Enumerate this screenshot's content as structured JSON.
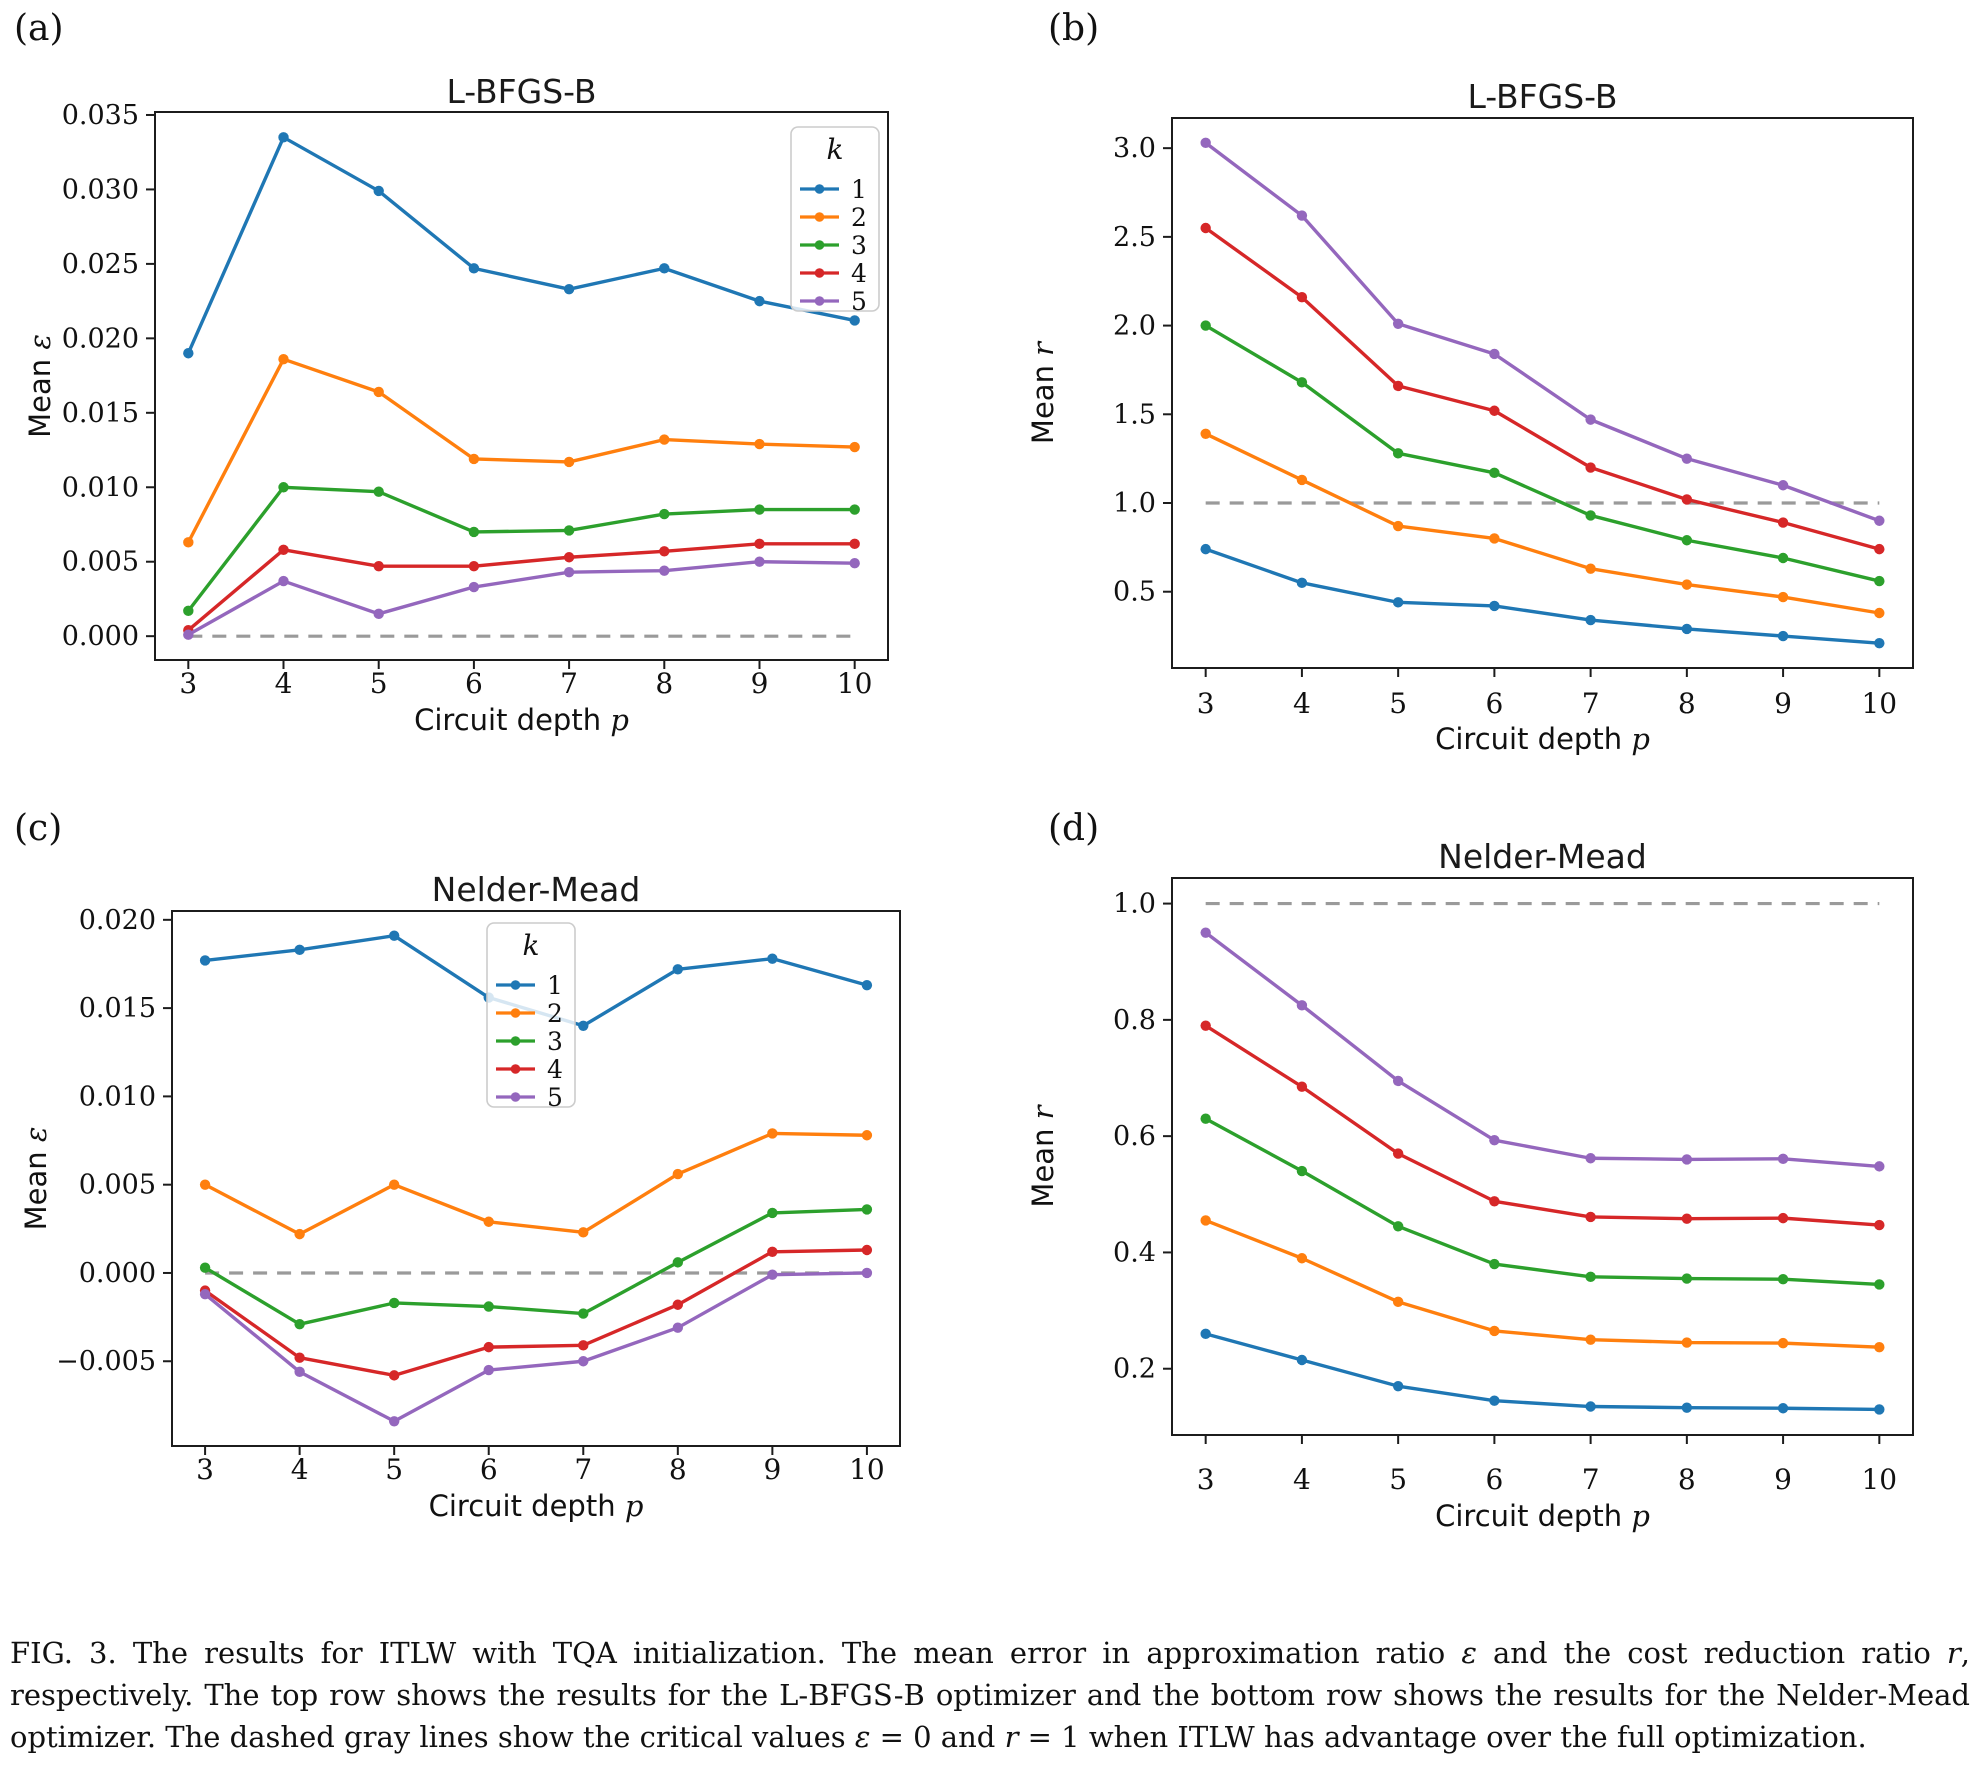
{
  "figure": {
    "caption_parts": [
      {
        "text": "FIG. 3. The results for ITLW with TQA initialization. The mean error in approximation ratio ",
        "italic": false
      },
      {
        "text": "ε",
        "italic": true
      },
      {
        "text": " and the cost reduction ratio ",
        "italic": false
      },
      {
        "text": "r",
        "italic": true
      },
      {
        "text": ", respectively. The top row shows the results for the L-BFGS-B optimizer and the bottom row shows the results for the Nelder-Mead optimizer. The dashed gray lines show the critical values ",
        "italic": false
      },
      {
        "text": "ε",
        "italic": true
      },
      {
        "text": " = 0 and ",
        "italic": false
      },
      {
        "text": "r",
        "italic": true
      },
      {
        "text": " = 1 when ITLW has advantage over the full optimization.",
        "italic": false
      }
    ]
  },
  "colors": {
    "k1": "#1f77b4",
    "k2": "#ff7f0e",
    "k3": "#2ca02c",
    "k4": "#d62728",
    "k5": "#9467bd",
    "reference_dash": "#9a9a9a",
    "spine": "#1c1c1c",
    "text": "#111111"
  },
  "chart_data": [
    {
      "id": "a",
      "panel_label": "(a)",
      "type": "line",
      "title": "L-BFGS-B",
      "xlabel": "Circuit depth",
      "xlabel_symbol": "p",
      "ylabel": "Mean",
      "ylabel_symbol": "ε",
      "x": [
        3,
        4,
        5,
        6,
        7,
        8,
        9,
        10
      ],
      "xlim": [
        2.65,
        10.35
      ],
      "ylim": [
        -0.0016,
        0.0352
      ],
      "grid": false,
      "xticks": [
        {
          "v": 3,
          "label": "3"
        },
        {
          "v": 4,
          "label": "4"
        },
        {
          "v": 5,
          "label": "5"
        },
        {
          "v": 6,
          "label": "6"
        },
        {
          "v": 7,
          "label": "7"
        },
        {
          "v": 8,
          "label": "8"
        },
        {
          "v": 9,
          "label": "9"
        },
        {
          "v": 10,
          "label": "10"
        }
      ],
      "yticks": [
        {
          "v": 0.0,
          "label": "0.000"
        },
        {
          "v": 0.005,
          "label": "0.005"
        },
        {
          "v": 0.01,
          "label": "0.010"
        },
        {
          "v": 0.015,
          "label": "0.015"
        },
        {
          "v": 0.02,
          "label": "0.020"
        },
        {
          "v": 0.025,
          "label": "0.025"
        },
        {
          "v": 0.03,
          "label": "0.030"
        },
        {
          "v": 0.035,
          "label": "0.035"
        }
      ],
      "ref_line": 0.0,
      "legend": {
        "show": true,
        "title": "k",
        "position": "top-right"
      },
      "series": [
        {
          "name": "1",
          "color": "#1f77b4",
          "values": [
            0.019,
            0.0335,
            0.0299,
            0.0247,
            0.0233,
            0.0247,
            0.0225,
            0.0212
          ]
        },
        {
          "name": "2",
          "color": "#ff7f0e",
          "values": [
            0.0063,
            0.0186,
            0.0164,
            0.0119,
            0.0117,
            0.0132,
            0.0129,
            0.0127
          ]
        },
        {
          "name": "3",
          "color": "#2ca02c",
          "values": [
            0.0017,
            0.01,
            0.0097,
            0.007,
            0.0071,
            0.0082,
            0.0085,
            0.0085
          ]
        },
        {
          "name": "4",
          "color": "#d62728",
          "values": [
            0.0004,
            0.0058,
            0.0047,
            0.0047,
            0.0053,
            0.0057,
            0.0062,
            0.0062
          ]
        },
        {
          "name": "5",
          "color": "#9467bd",
          "values": [
            0.0001,
            0.0037,
            0.0015,
            0.0033,
            0.0043,
            0.0044,
            0.005,
            0.0049
          ]
        }
      ]
    },
    {
      "id": "b",
      "panel_label": "(b)",
      "type": "line",
      "title": "L-BFGS-B",
      "xlabel": "Circuit depth",
      "xlabel_symbol": "p",
      "ylabel": "Mean",
      "ylabel_symbol": "r",
      "x": [
        3,
        4,
        5,
        6,
        7,
        8,
        9,
        10
      ],
      "xlim": [
        2.65,
        10.35
      ],
      "ylim": [
        0.07,
        3.17
      ],
      "grid": false,
      "xticks": [
        {
          "v": 3,
          "label": "3"
        },
        {
          "v": 4,
          "label": "4"
        },
        {
          "v": 5,
          "label": "5"
        },
        {
          "v": 6,
          "label": "6"
        },
        {
          "v": 7,
          "label": "7"
        },
        {
          "v": 8,
          "label": "8"
        },
        {
          "v": 9,
          "label": "9"
        },
        {
          "v": 10,
          "label": "10"
        }
      ],
      "yticks": [
        {
          "v": 0.5,
          "label": "0.5"
        },
        {
          "v": 1.0,
          "label": "1.0"
        },
        {
          "v": 1.5,
          "label": "1.5"
        },
        {
          "v": 2.0,
          "label": "2.0"
        },
        {
          "v": 2.5,
          "label": "2.5"
        },
        {
          "v": 3.0,
          "label": "3.0"
        }
      ],
      "ref_line": 1.0,
      "legend": {
        "show": false
      },
      "series": [
        {
          "name": "1",
          "color": "#1f77b4",
          "values": [
            0.74,
            0.55,
            0.44,
            0.42,
            0.34,
            0.29,
            0.25,
            0.21
          ]
        },
        {
          "name": "2",
          "color": "#ff7f0e",
          "values": [
            1.39,
            1.13,
            0.87,
            0.8,
            0.63,
            0.54,
            0.47,
            0.38
          ]
        },
        {
          "name": "3",
          "color": "#2ca02c",
          "values": [
            2.0,
            1.68,
            1.28,
            1.17,
            0.93,
            0.79,
            0.69,
            0.56
          ]
        },
        {
          "name": "4",
          "color": "#d62728",
          "values": [
            2.55,
            2.16,
            1.66,
            1.52,
            1.2,
            1.02,
            0.89,
            0.74
          ]
        },
        {
          "name": "5",
          "color": "#9467bd",
          "values": [
            3.03,
            2.62,
            2.01,
            1.84,
            1.47,
            1.25,
            1.1,
            0.9
          ]
        }
      ]
    },
    {
      "id": "c",
      "panel_label": "(c)",
      "type": "line",
      "title": "Nelder-Mead",
      "xlabel": "Circuit depth",
      "xlabel_symbol": "p",
      "ylabel": "Mean",
      "ylabel_symbol": "ε",
      "x": [
        3,
        4,
        5,
        6,
        7,
        8,
        9,
        10
      ],
      "xlim": [
        2.65,
        10.35
      ],
      "ylim": [
        -0.0098,
        0.0205
      ],
      "grid": false,
      "xticks": [
        {
          "v": 3,
          "label": "3"
        },
        {
          "v": 4,
          "label": "4"
        },
        {
          "v": 5,
          "label": "5"
        },
        {
          "v": 6,
          "label": "6"
        },
        {
          "v": 7,
          "label": "7"
        },
        {
          "v": 8,
          "label": "8"
        },
        {
          "v": 9,
          "label": "9"
        },
        {
          "v": 10,
          "label": "10"
        }
      ],
      "yticks": [
        {
          "v": -0.005,
          "label": "−0.005"
        },
        {
          "v": 0.0,
          "label": "0.000"
        },
        {
          "v": 0.005,
          "label": "0.005"
        },
        {
          "v": 0.01,
          "label": "0.010"
        },
        {
          "v": 0.015,
          "label": "0.015"
        },
        {
          "v": 0.02,
          "label": "0.020"
        }
      ],
      "ref_line": 0.0,
      "legend": {
        "show": true,
        "title": "k",
        "position": "top-center"
      },
      "series": [
        {
          "name": "1",
          "color": "#1f77b4",
          "values": [
            0.0177,
            0.0183,
            0.0191,
            0.0156,
            0.014,
            0.0172,
            0.0178,
            0.0163
          ]
        },
        {
          "name": "2",
          "color": "#ff7f0e",
          "values": [
            0.005,
            0.0022,
            0.005,
            0.0029,
            0.0023,
            0.0056,
            0.0079,
            0.0078
          ]
        },
        {
          "name": "3",
          "color": "#2ca02c",
          "values": [
            0.0003,
            -0.0029,
            -0.0017,
            -0.0019,
            -0.0023,
            0.0006,
            0.0034,
            0.0036
          ]
        },
        {
          "name": "4",
          "color": "#d62728",
          "values": [
            -0.001,
            -0.0048,
            -0.0058,
            -0.0042,
            -0.0041,
            -0.0018,
            0.0012,
            0.0013
          ]
        },
        {
          "name": "5",
          "color": "#9467bd",
          "values": [
            -0.0012,
            -0.0056,
            -0.0084,
            -0.0055,
            -0.005,
            -0.0031,
            -0.0001,
            0.0
          ]
        }
      ]
    },
    {
      "id": "d",
      "panel_label": "(d)",
      "type": "line",
      "title": "Nelder-Mead",
      "xlabel": "Circuit depth",
      "xlabel_symbol": "p",
      "ylabel": "Mean",
      "ylabel_symbol": "r",
      "x": [
        3,
        4,
        5,
        6,
        7,
        8,
        9,
        10
      ],
      "xlim": [
        2.65,
        10.35
      ],
      "ylim": [
        0.086,
        1.044
      ],
      "grid": false,
      "xticks": [
        {
          "v": 3,
          "label": "3"
        },
        {
          "v": 4,
          "label": "4"
        },
        {
          "v": 5,
          "label": "5"
        },
        {
          "v": 6,
          "label": "6"
        },
        {
          "v": 7,
          "label": "7"
        },
        {
          "v": 8,
          "label": "8"
        },
        {
          "v": 9,
          "label": "9"
        },
        {
          "v": 10,
          "label": "10"
        }
      ],
      "yticks": [
        {
          "v": 0.2,
          "label": "0.2"
        },
        {
          "v": 0.4,
          "label": "0.4"
        },
        {
          "v": 0.6,
          "label": "0.6"
        },
        {
          "v": 0.8,
          "label": "0.8"
        },
        {
          "v": 1.0,
          "label": "1.0"
        }
      ],
      "ref_line": 1.0,
      "legend": {
        "show": false
      },
      "series": [
        {
          "name": "1",
          "color": "#1f77b4",
          "values": [
            0.26,
            0.215,
            0.17,
            0.145,
            0.135,
            0.133,
            0.132,
            0.13
          ]
        },
        {
          "name": "2",
          "color": "#ff7f0e",
          "values": [
            0.455,
            0.39,
            0.315,
            0.265,
            0.25,
            0.245,
            0.244,
            0.237
          ]
        },
        {
          "name": "3",
          "color": "#2ca02c",
          "values": [
            0.63,
            0.54,
            0.445,
            0.38,
            0.358,
            0.355,
            0.354,
            0.345
          ]
        },
        {
          "name": "4",
          "color": "#d62728",
          "values": [
            0.79,
            0.685,
            0.57,
            0.488,
            0.461,
            0.458,
            0.459,
            0.447
          ]
        },
        {
          "name": "5",
          "color": "#9467bd",
          "values": [
            0.95,
            0.825,
            0.695,
            0.593,
            0.562,
            0.56,
            0.561,
            0.548
          ]
        }
      ]
    }
  ]
}
